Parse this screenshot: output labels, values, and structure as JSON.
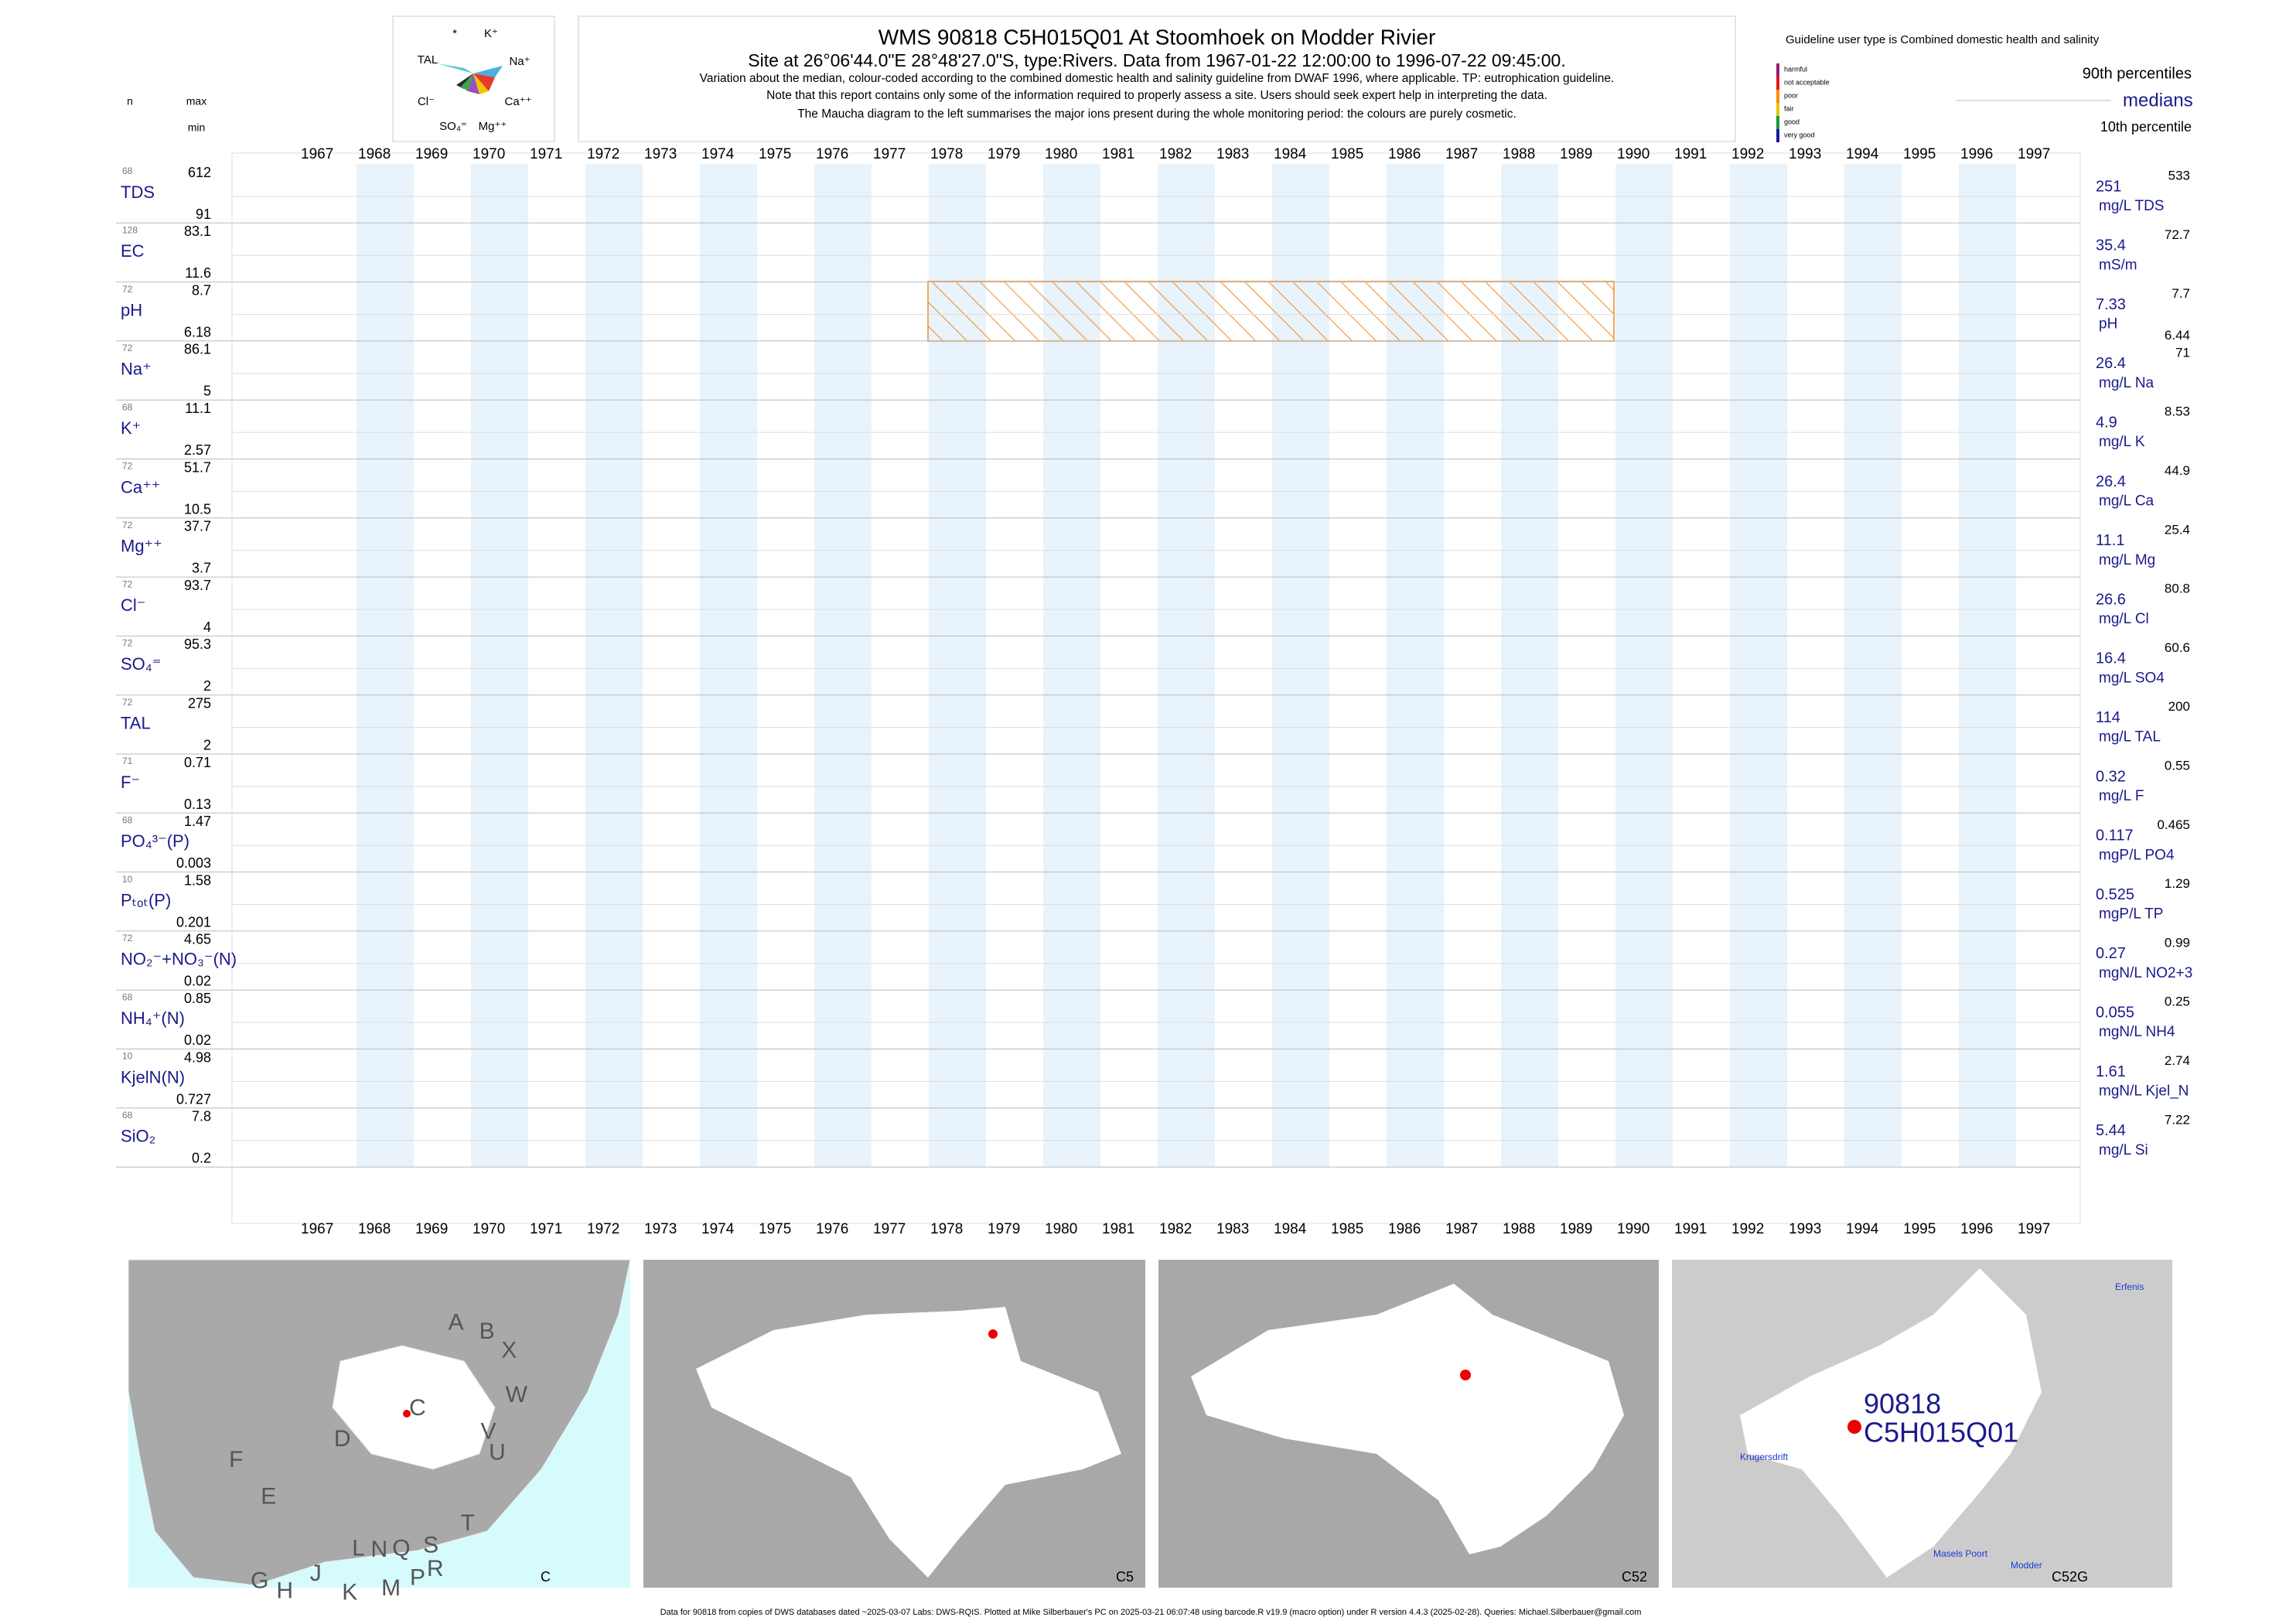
{
  "header": {
    "title": "WMS 90818 C5H015Q01 At Stoomhoek on Modder Rivier",
    "subtitle": "Site at 26°06'44.0\"E 28°48'27.0\"S, type:Rivers.  Data from 1967-01-22 12:00:00 to 1996-07-22 09:45:00.",
    "notes": [
      "Variation about the median,  colour-coded according to the combined domestic health and salinity guideline from DWAF 1996, where applicable. TP: eutrophication guideline.",
      "Note that this report contains only some of the information required to properly assess a site. Users should seek expert help in interpreting the data.",
      "The Maucha diagram to the left summarises the major ions present during the whole monitoring period: the colours are purely cosmetic."
    ]
  },
  "maucha": [
    "*",
    "K⁺",
    "TAL",
    "Na⁺",
    "Cl⁻",
    "Ca⁺⁺",
    "SO₄⁼",
    "Mg⁺⁺"
  ],
  "column_headers": {
    "n": "n",
    "max": "max",
    "min": "min"
  },
  "legend": {
    "title": "Guideline user type is Combined domestic health and salinity",
    "classes": [
      {
        "label": "harmful",
        "color": "#9b1b6e"
      },
      {
        "label": "not acceptable",
        "color": "#e31a1c"
      },
      {
        "label": "poor",
        "color": "#ff8c00"
      },
      {
        "label": "fair",
        "color": "#e6c800"
      },
      {
        "label": "good",
        "color": "#1a9641"
      },
      {
        "label": "very good",
        "color": "#1a1aa8"
      }
    ],
    "p90": "90th percentiles",
    "medians": "medians",
    "p10": "10th percentile"
  },
  "years": [
    1967,
    1968,
    1969,
    1970,
    1971,
    1972,
    1973,
    1974,
    1975,
    1976,
    1977,
    1978,
    1979,
    1980,
    1981,
    1982,
    1983,
    1984,
    1985,
    1986,
    1987,
    1988,
    1989,
    1990,
    1991,
    1992,
    1993,
    1994,
    1995,
    1996,
    1997
  ],
  "variables": [
    {
      "name": "TDS",
      "n": 68,
      "max": 612,
      "min": 91,
      "median": 251,
      "p90": 533,
      "unit": "mg/L TDS"
    },
    {
      "name": "EC",
      "n": 128,
      "max": 83.1,
      "min": 11.6,
      "median": 35.4,
      "p90": 72.7,
      "unit": "mS/m"
    },
    {
      "name": "pH",
      "n": 72,
      "max": 8.7,
      "min": 6.18,
      "median": 7.33,
      "p90": 7.7,
      "p10": 6.44,
      "unit": "pH"
    },
    {
      "name": "Na⁺",
      "n": 72,
      "max": 86.1,
      "min": 5,
      "median": 26.4,
      "p90": 71,
      "unit": "mg/L Na"
    },
    {
      "name": "K⁺",
      "n": 68,
      "max": 11.1,
      "min": 2.57,
      "median": 4.9,
      "p90": 8.53,
      "unit": "mg/L K"
    },
    {
      "name": "Ca⁺⁺",
      "n": 72,
      "max": 51.7,
      "min": 10.5,
      "median": 26.4,
      "p90": 44.9,
      "unit": "mg/L Ca"
    },
    {
      "name": "Mg⁺⁺",
      "n": 72,
      "max": 37.7,
      "min": 3.7,
      "median": 11.1,
      "p90": 25.4,
      "unit": "mg/L Mg"
    },
    {
      "name": "Cl⁻",
      "n": 72,
      "max": 93.7,
      "min": 4,
      "median": 26.6,
      "p90": 80.8,
      "unit": "mg/L Cl"
    },
    {
      "name": "SO₄⁼",
      "n": 72,
      "max": 95.3,
      "min": 2,
      "median": 16.4,
      "p90": 60.6,
      "unit": "mg/L SO4"
    },
    {
      "name": "TAL",
      "n": 72,
      "max": 275,
      "min": 2,
      "median": 114,
      "p90": 200,
      "unit": "mg/L TAL"
    },
    {
      "name": "F⁻",
      "n": 71,
      "max": 0.71,
      "min": 0.13,
      "median": 0.32,
      "p90": 0.55,
      "unit": "mg/L F"
    },
    {
      "name": "PO₄³⁻(P)",
      "n": 68,
      "max": 1.47,
      "min": 0.003,
      "median": 0.117,
      "p90": 0.465,
      "unit": "mgP/L PO4"
    },
    {
      "name": "Pₜₒₜ(P)",
      "n": 10,
      "max": 1.58,
      "min": 0.201,
      "median": 0.525,
      "p90": 1.29,
      "unit": "mgP/L TP"
    },
    {
      "name": "NO₂⁻+NO₃⁻(N)",
      "n": 72,
      "max": 4.65,
      "min": 0.02,
      "median": 0.27,
      "p90": 0.99,
      "unit": "mgN/L NO2+3"
    },
    {
      "name": "NH₄⁺(N)",
      "n": 68,
      "max": 0.85,
      "min": 0.02,
      "median": 0.055,
      "p90": 0.25,
      "unit": "mgN/L NH4"
    },
    {
      "name": "KjelN(N)",
      "n": 10,
      "max": 4.98,
      "min": 0.727,
      "median": 1.61,
      "p90": 2.74,
      "unit": "mgN/L Kjel_N"
    },
    {
      "name": "SiO₂",
      "n": 68,
      "max": 7.8,
      "min": 0.2,
      "median": 5.44,
      "p90": 7.22,
      "unit": "mg/L Si"
    }
  ],
  "maps": {
    "labels": [
      "C",
      "C5",
      "C52",
      "C52G"
    ],
    "regions": [
      "A",
      "B",
      "X",
      "C",
      "W",
      "D",
      "V",
      "U",
      "F",
      "T",
      "E",
      "L",
      "N",
      "Q",
      "S",
      "G",
      "H",
      "J",
      "R",
      "K",
      "M",
      "P"
    ],
    "site_id": "90818",
    "site_code": "C5H015Q01",
    "places": [
      "Krugersdrift",
      "Masels Poort",
      "Modder",
      "Erfenis"
    ]
  },
  "footer": "Data for 90818 from copies of DWS databases dated ~2025-03-07 Labs: DWS-RQIS. Plotted at Mike Silberbauer's PC on 2025-03-21 06:07:48 using barcode.R v19.9 (macro option) under R version 4.4.3 (2025-02-28). Queries: Michael.Silberbauer@gmail.com"
}
